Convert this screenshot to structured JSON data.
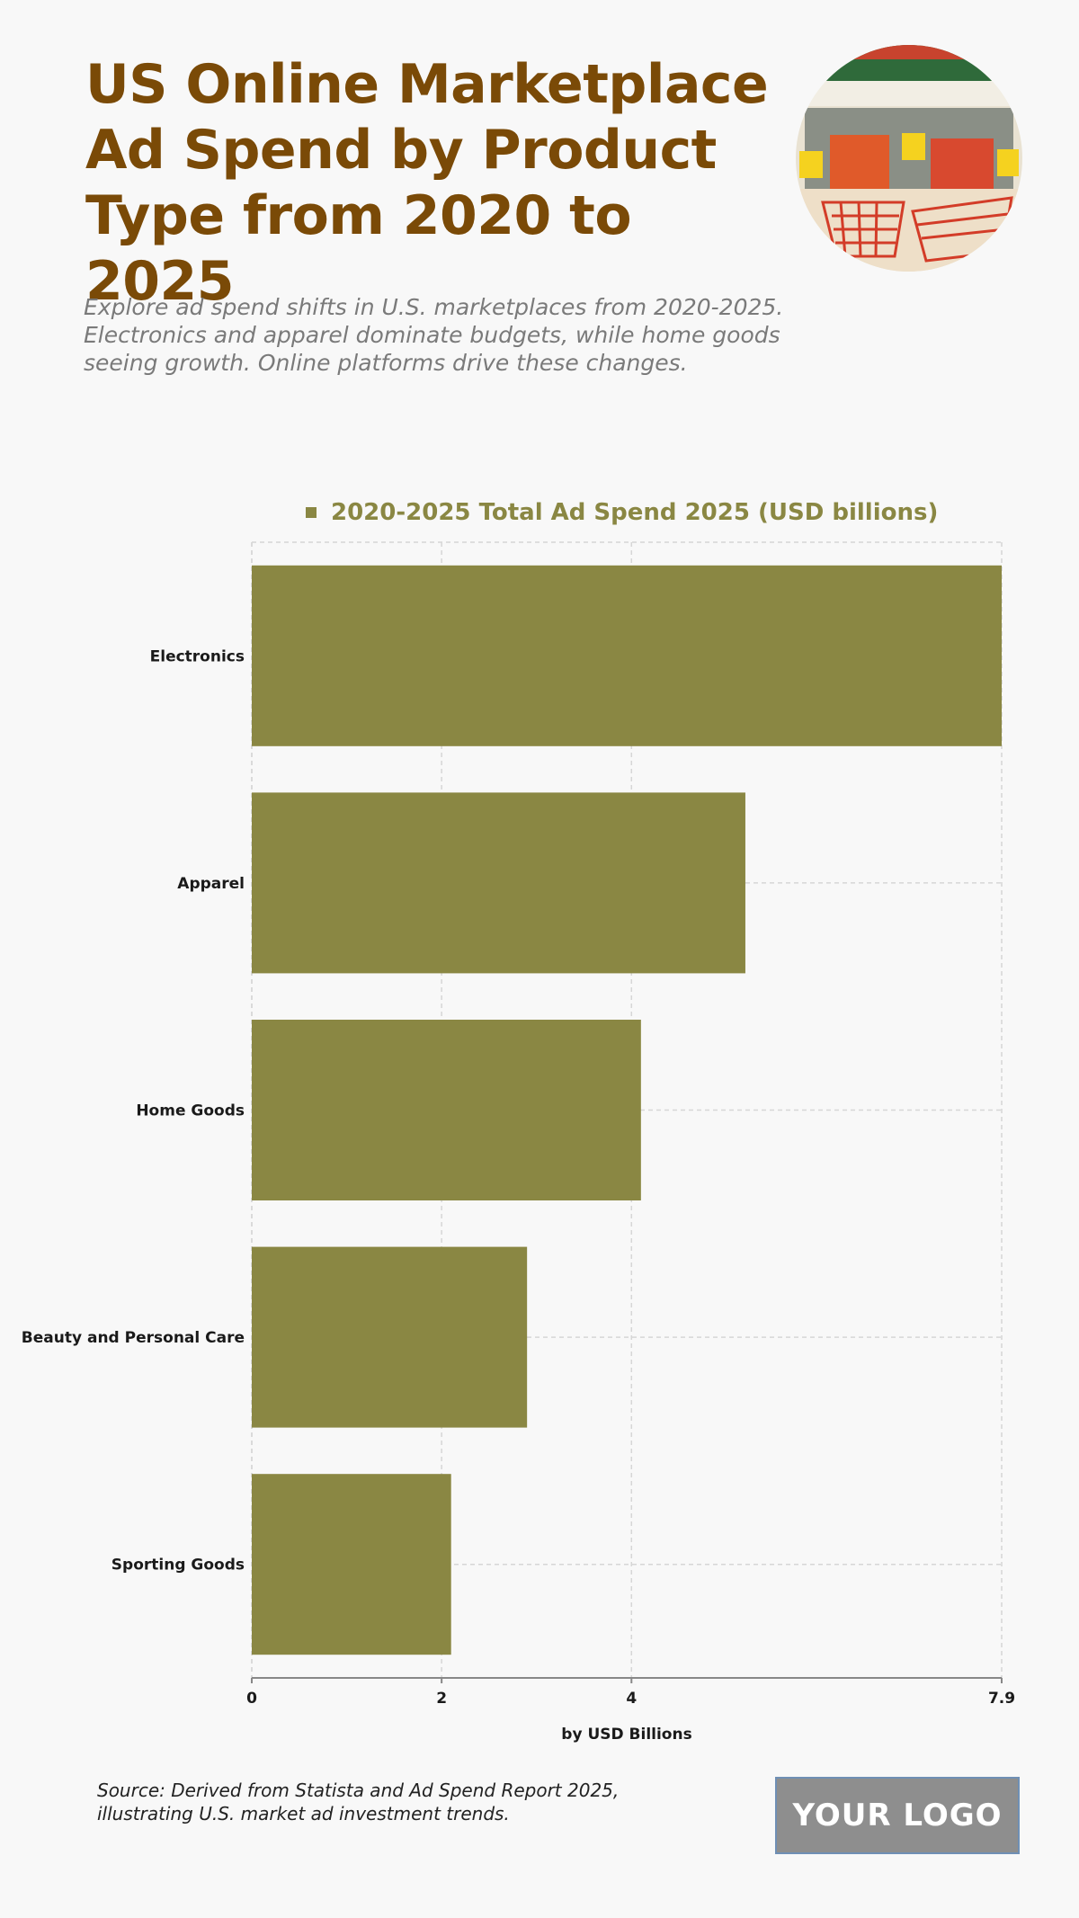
{
  "header": {
    "title": "US Online Marketplace Ad Spend by Product Type from 2020 to 2025",
    "subtitle": "Explore ad spend shifts in U.S. marketplaces from 2020-2025. Electronics and apparel dominate budgets, while home goods seeing growth. Online platforms drive these changes."
  },
  "colors": {
    "title": "#7a4a07",
    "bar": "#8a8743",
    "accent_red": "#d8492f"
  },
  "chart_data": {
    "type": "bar",
    "orientation": "horizontal",
    "categories": [
      "Electronics",
      "Apparel",
      "Home Goods",
      "Beauty and Personal Care",
      "Sporting Goods"
    ],
    "series": [
      {
        "name": "2020-2025 Total Ad Spend 2025 (USD billions)",
        "values": [
          7.9,
          5.2,
          4.1,
          2.9,
          2.1
        ]
      }
    ],
    "xlabel": "by USD Billions",
    "ylabel": "",
    "xlim": [
      0,
      7.9
    ],
    "xticks": [
      "0",
      "2",
      "4",
      "7.9"
    ],
    "grid": true,
    "legend": "top-center"
  },
  "footer": {
    "source": "Source: Derived from Statista and Ad Spend Report 2025, illustrating U.S. market ad investment trends.",
    "logo_text": "YOUR LOGO"
  }
}
